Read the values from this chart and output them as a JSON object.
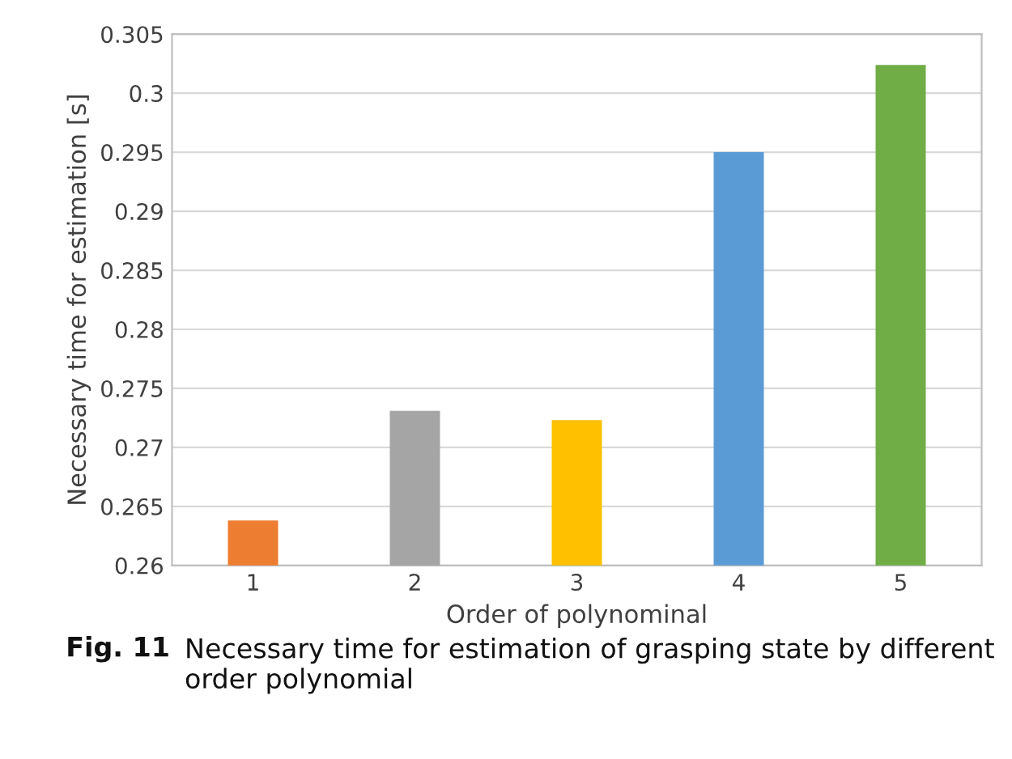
{
  "chart_data": {
    "type": "bar",
    "xlabel": "Order of polynominal",
    "ylabel": "Necessary time for estimation [s]",
    "categories": [
      "1",
      "2",
      "3",
      "4",
      "5"
    ],
    "values": [
      0.2638,
      0.2731,
      0.2723,
      0.295,
      0.3024
    ],
    "colors": [
      "#ed7d31",
      "#a5a5a5",
      "#ffc000",
      "#5b9bd5",
      "#70ad47"
    ],
    "ylim": [
      0.26,
      0.305
    ],
    "yticks": [
      0.26,
      0.265,
      0.27,
      0.275,
      0.28,
      0.285,
      0.29,
      0.295,
      0.3,
      0.305
    ],
    "grid": "y",
    "annotations": [
      "Fig. 11",
      "Necessary time for estimation of grasping state by different order polynomial"
    ]
  }
}
